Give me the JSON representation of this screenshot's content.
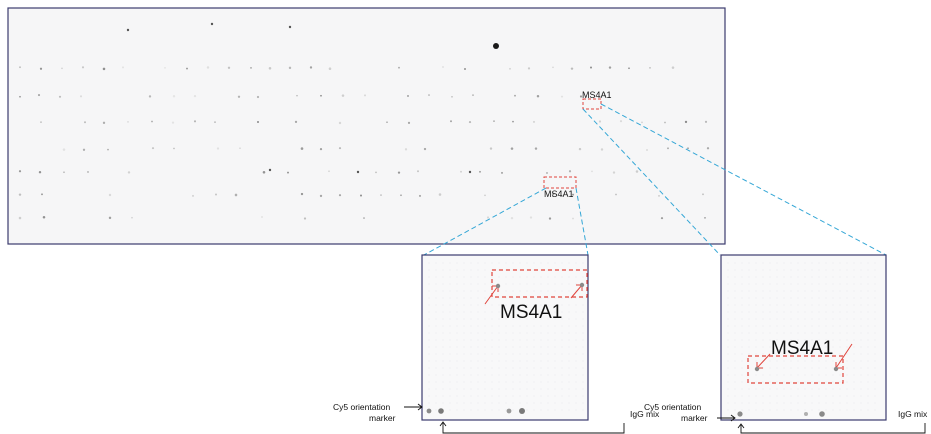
{
  "labels": {
    "overview_top": "MS4A1",
    "overview_bottom": "MS4A1",
    "zoom_left": "MS4A1",
    "zoom_right": "MS4A1",
    "cy5_left_line1": "Cy5 orientation",
    "cy5_left_line2": "marker",
    "cy5_right_line1": "Cy5 orientation",
    "cy5_right_line2": "marker",
    "igg_left": "IgG mix",
    "igg_right": "IgG mix"
  },
  "colors": {
    "frame": "#3b3b6e",
    "callout": "#e0443c",
    "zoom_line": "#35a7d6",
    "spot": "#6a6a6a"
  }
}
